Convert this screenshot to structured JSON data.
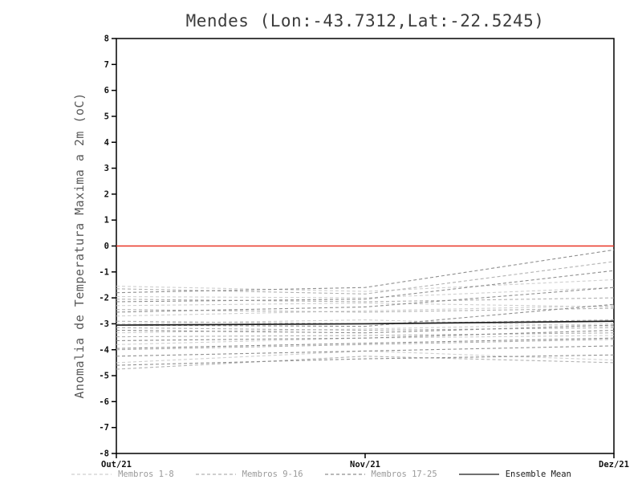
{
  "chart_data": {
    "type": "line",
    "title": "Mendes (Lon:-43.7312,Lat:-22.5245)",
    "ylabel": "Anomalia de Temperatura Maxima a 2m (oC)",
    "xlabel": "",
    "x_tick_labels": [
      "Out/21",
      "Nov/21",
      "Dez/21"
    ],
    "ylim": [
      -8,
      8
    ],
    "y_tick_step": 1,
    "grid": false,
    "legend_position": "bottom",
    "zero_line": {
      "y": 0,
      "color": "#e93425"
    },
    "groups": [
      {
        "name": "Membros 1-8",
        "color": "#cfcfcf",
        "dash": "4 3",
        "members": [
          [
            -1.55,
            -1.75,
            -1.3
          ],
          [
            -1.95,
            -2.0,
            -1.6
          ],
          [
            -2.3,
            -2.2,
            -2.35
          ],
          [
            -2.7,
            -2.5,
            -2.3
          ],
          [
            -3.0,
            -2.85,
            -3.1
          ],
          [
            -3.35,
            -3.2,
            -3.0
          ],
          [
            -3.8,
            -3.55,
            -3.45
          ],
          [
            -4.5,
            -4.05,
            -4.4
          ]
        ]
      },
      {
        "name": "Membros 9-16",
        "color": "#b2b2b2",
        "dash": "4 3",
        "members": [
          [
            -1.65,
            -1.85,
            -0.6
          ],
          [
            -2.05,
            -2.15,
            -2.0
          ],
          [
            -2.45,
            -2.55,
            -2.4
          ],
          [
            -2.9,
            -3.0,
            -2.85
          ],
          [
            -3.15,
            -3.25,
            -3.15
          ],
          [
            -3.5,
            -3.45,
            -3.35
          ],
          [
            -4.0,
            -3.8,
            -3.6
          ],
          [
            -4.75,
            -4.25,
            -4.5
          ]
        ]
      },
      {
        "name": "Membros 17-25",
        "color": "#8f8f8f",
        "dash": "4 3",
        "members": [
          [
            -1.8,
            -1.6,
            -0.15
          ],
          [
            -2.15,
            -2.05,
            -0.95
          ],
          [
            -2.55,
            -2.35,
            -1.6
          ],
          [
            -3.05,
            -3.1,
            -2.25
          ],
          [
            -3.25,
            -3.35,
            -3.05
          ],
          [
            -3.65,
            -3.55,
            -3.25
          ],
          [
            -3.95,
            -3.75,
            -3.55
          ],
          [
            -4.25,
            -4.05,
            -3.85
          ],
          [
            -4.6,
            -4.35,
            -4.2
          ]
        ]
      }
    ],
    "mean": {
      "name": "Ensemble Mean",
      "color": "#1a1a1a",
      "values": [
        -3.05,
        -3.0,
        -2.9
      ]
    },
    "legend": {
      "member_label_color": "#9a9a9a",
      "mean_label_color": "#1a1a1a"
    }
  }
}
